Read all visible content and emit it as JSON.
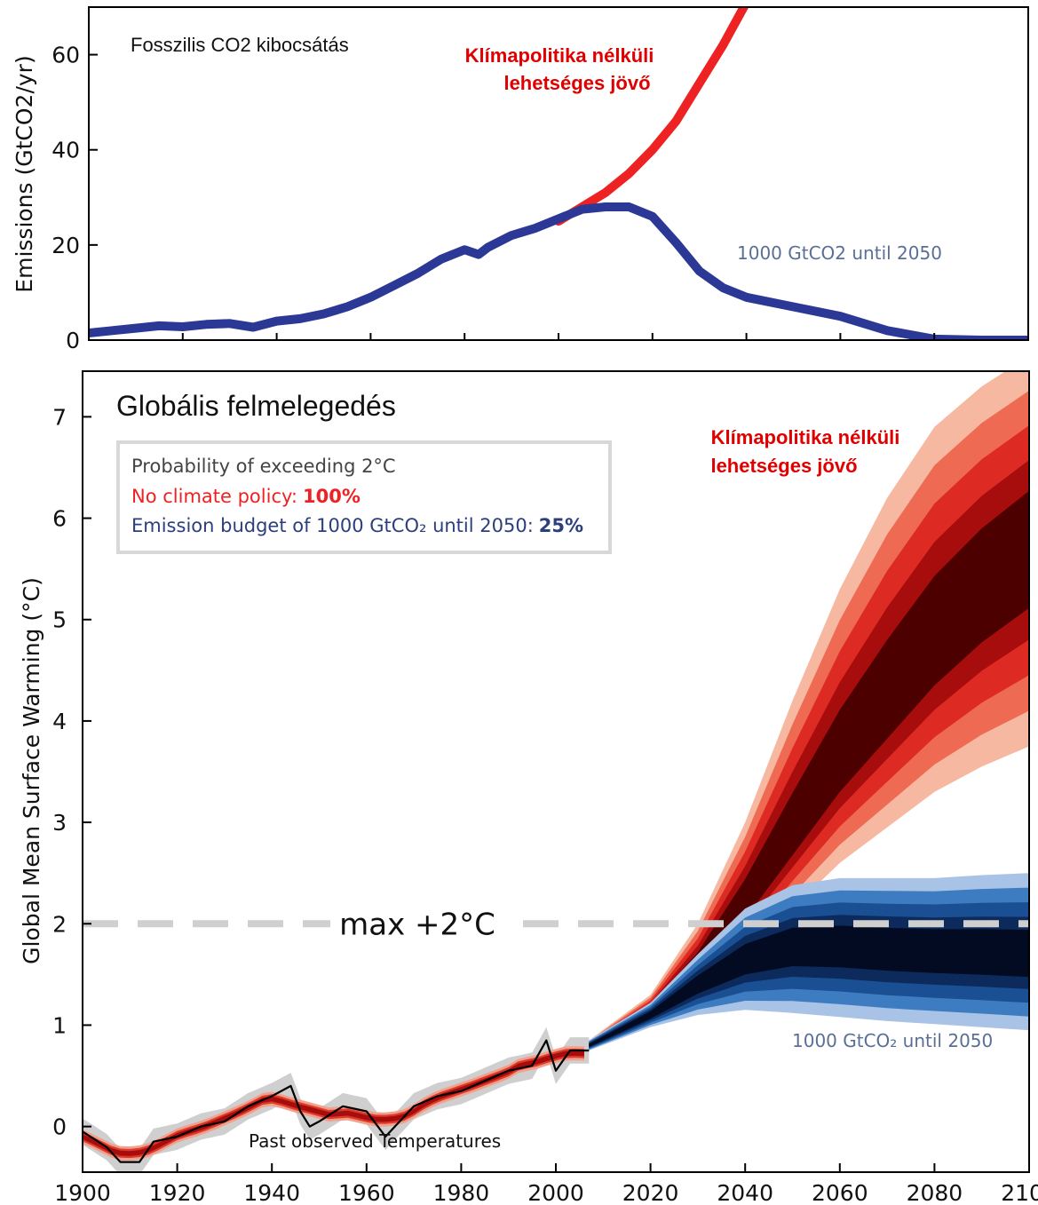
{
  "chart_data": [
    {
      "type": "line",
      "title": "Fosszilis CO2 kibocsátás",
      "ylabel": "Emissions (GtCO2/yr)",
      "ylim": [
        0,
        70
      ],
      "xlim": [
        1900,
        2100
      ],
      "yticks": [
        "0",
        "20",
        "40",
        "60"
      ],
      "grid": false,
      "series": [
        {
          "name": "Klímapolitika nélküli lehetséges jövő",
          "color": "#ee2222",
          "x": [
            2000,
            2005,
            2010,
            2015,
            2020,
            2025,
            2030,
            2035,
            2040
          ],
          "y": [
            25,
            28,
            31,
            35,
            40,
            46,
            54,
            62,
            71
          ]
        },
        {
          "name": "1000 GtCO2 until 2050",
          "color": "#2b3896",
          "x": [
            1900,
            1905,
            1910,
            1915,
            1920,
            1925,
            1930,
            1935,
            1940,
            1945,
            1950,
            1955,
            1960,
            1965,
            1970,
            1975,
            1980,
            1983,
            1985,
            1990,
            1995,
            2000,
            2005,
            2010,
            2015,
            2020,
            2025,
            2030,
            2035,
            2040,
            2050,
            2060,
            2070,
            2080,
            2090,
            2100
          ],
          "y": [
            1.5,
            2,
            2.5,
            3,
            2.8,
            3.3,
            3.5,
            2.7,
            4,
            4.5,
            5.5,
            7,
            9,
            11.5,
            14,
            17,
            19,
            18,
            19.5,
            22,
            23.5,
            25.5,
            27.5,
            28,
            28,
            26,
            20.5,
            14.5,
            11,
            9,
            7,
            5,
            2,
            0.2,
            0,
            0
          ]
        }
      ]
    },
    {
      "type": "area",
      "title": "Globális felmelegedés",
      "ylabel": "Global Mean Surface Warming (°C)",
      "ylim": [
        -0.45,
        7.45
      ],
      "xlim": [
        1900,
        2100
      ],
      "xticks": [
        "1900",
        "1920",
        "1940",
        "1960",
        "1980",
        "2000",
        "2020",
        "2040",
        "2060",
        "2080",
        "2100"
      ],
      "yticks": [
        "0",
        "1",
        "2",
        "3",
        "4",
        "5",
        "6",
        "7"
      ],
      "grid": false,
      "threshold": {
        "value": 2,
        "label": "max +2°C"
      },
      "legend": {
        "heading": "Probability of exceeding 2°C",
        "no_policy_label": "No climate policy:",
        "no_policy_value": "100%",
        "budget_label": "Emission budget of 1000 GtCO₂ until 2050:",
        "budget_value": "25%"
      },
      "annotations": {
        "red_future": "Klímapolitika nélküli lehetséges jövő",
        "blue_budget": "1000 GtCO₂ until 2050",
        "observed": "Past observed Temperatures"
      },
      "series": [
        {
          "name": "No climate policy",
          "color": "#c01818",
          "x": [
            2007,
            2020,
            2030,
            2040,
            2050,
            2060,
            2070,
            2080,
            2090,
            2100
          ],
          "median": [
            0.8,
            1.15,
            1.6,
            2.2,
            2.9,
            3.6,
            4.2,
            4.8,
            5.3,
            5.7
          ],
          "outer_low": [
            0.75,
            1.0,
            1.3,
            1.7,
            2.15,
            2.6,
            2.95,
            3.3,
            3.55,
            3.75
          ],
          "outer_high": [
            0.85,
            1.3,
            2.0,
            3.0,
            4.2,
            5.3,
            6.2,
            6.9,
            7.3,
            7.6
          ]
        },
        {
          "name": "1000 GtCO2 until 2050",
          "color": "#0b1a3c",
          "x": [
            2007,
            2020,
            2030,
            2040,
            2050,
            2060,
            2070,
            2080,
            2090,
            2100
          ],
          "median": [
            0.8,
            1.1,
            1.4,
            1.65,
            1.78,
            1.78,
            1.75,
            1.73,
            1.72,
            1.7
          ],
          "outer_low": [
            0.75,
            0.98,
            1.1,
            1.15,
            1.12,
            1.08,
            1.04,
            1.01,
            0.98,
            0.95
          ],
          "outer_high": [
            0.85,
            1.22,
            1.7,
            2.15,
            2.38,
            2.45,
            2.45,
            2.45,
            2.48,
            2.5
          ]
        },
        {
          "name": "Past observed Temperatures",
          "color": "#000000",
          "x": [
            1900,
            1905,
            1908,
            1912,
            1915,
            1920,
            1925,
            1930,
            1935,
            1940,
            1944,
            1946,
            1948,
            1950,
            1955,
            1960,
            1964,
            1967,
            1970,
            1975,
            1980,
            1985,
            1990,
            1995,
            1998,
            2000,
            2003,
            2007
          ],
          "y": [
            -0.05,
            -0.2,
            -0.35,
            -0.35,
            -0.15,
            -0.1,
            0.0,
            0.05,
            0.2,
            0.3,
            0.4,
            0.15,
            0.0,
            0.05,
            0.2,
            0.15,
            -0.1,
            0.05,
            0.2,
            0.3,
            0.35,
            0.45,
            0.55,
            0.6,
            0.85,
            0.55,
            0.75,
            0.75
          ]
        }
      ]
    }
  ]
}
